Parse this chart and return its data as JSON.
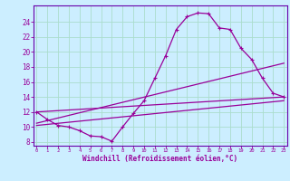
{
  "xlabel": "Windchill (Refroidissement éolien,°C)",
  "bg_color": "#cceeff",
  "grid_color": "#aaddcc",
  "line_color": "#990099",
  "spine_color": "#6600aa",
  "x_ticks": [
    0,
    1,
    2,
    3,
    4,
    5,
    6,
    7,
    8,
    9,
    10,
    11,
    12,
    13,
    14,
    15,
    16,
    17,
    18,
    19,
    20,
    21,
    22,
    23
  ],
  "y_ticks": [
    8,
    10,
    12,
    14,
    16,
    18,
    20,
    22,
    24
  ],
  "xlim": [
    -0.3,
    23.3
  ],
  "ylim": [
    7.5,
    26.2
  ],
  "series1_x": [
    0,
    1,
    2,
    3,
    4,
    5,
    6,
    7,
    8,
    9,
    10,
    11,
    12,
    13,
    14,
    15,
    16,
    17,
    18,
    19,
    20,
    21,
    22,
    23
  ],
  "series1_y": [
    12,
    11,
    10.2,
    10,
    9.5,
    8.8,
    8.7,
    8.1,
    10,
    11.8,
    13.5,
    16.5,
    19.5,
    23.0,
    24.7,
    25.2,
    25.1,
    23.2,
    23.0,
    20.5,
    19.0,
    16.5,
    14.5,
    14.0
  ],
  "series2_x": [
    0,
    23
  ],
  "series2_y": [
    12.0,
    14.0
  ],
  "series3_x": [
    0,
    23
  ],
  "series3_y": [
    10.5,
    18.5
  ],
  "series4_x": [
    0,
    23
  ],
  "series4_y": [
    10.2,
    13.5
  ]
}
